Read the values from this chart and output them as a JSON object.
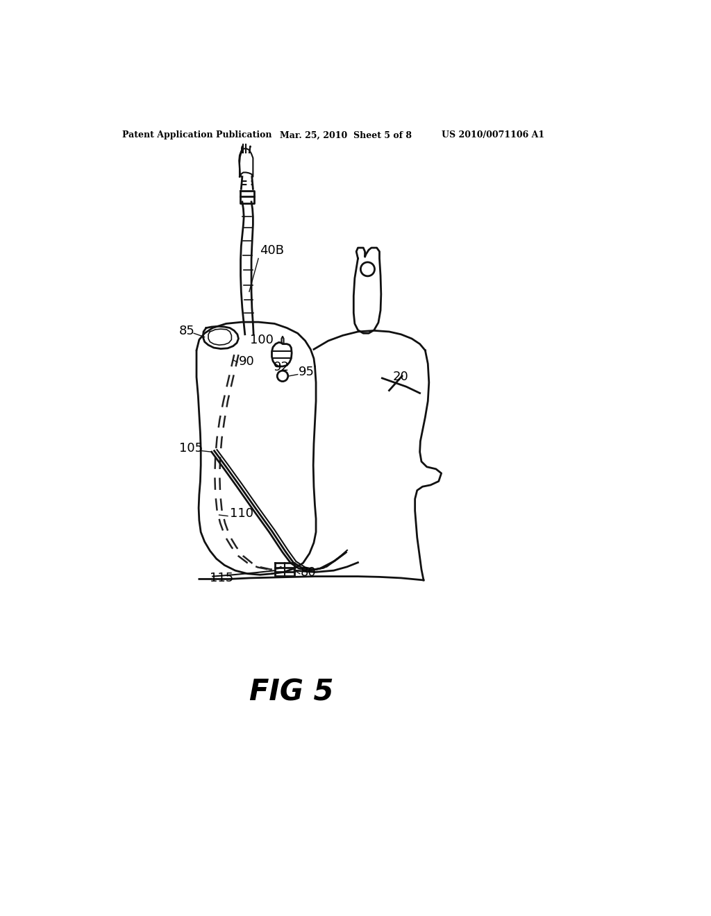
{
  "background_color": "#ffffff",
  "header_left": "Patent Application Publication",
  "header_mid": "Mar. 25, 2010  Sheet 5 of 8",
  "header_right": "US 2010/0071106 A1",
  "figure_label": "FIG 5",
  "line_color": "#111111"
}
